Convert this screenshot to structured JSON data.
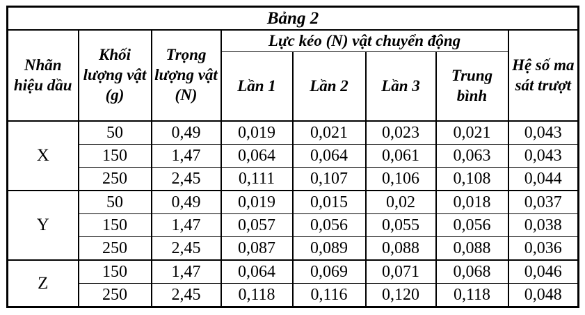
{
  "title": "Bảng 2",
  "columns": {
    "label": "Nhãn hiệu dầu",
    "mass": "Khối lượng vật (g)",
    "weight": "Trọng lượng vật (N)",
    "force_group": "Lực kéo (N) vật chuyển động",
    "trial1": "Lần 1",
    "trial2": "Lần 2",
    "trial3": "Lần 3",
    "average": "Trung bình",
    "friction": "Hệ số ma sát trượt"
  },
  "groups": [
    {
      "label": "X",
      "rows": [
        [
          "50",
          "0,49",
          "0,019",
          "0,021",
          "0,023",
          "0,021",
          "0,043"
        ],
        [
          "150",
          "1,47",
          "0,064",
          "0,064",
          "0,061",
          "0,063",
          "0,043"
        ],
        [
          "250",
          "2,45",
          "0,111",
          "0,107",
          "0,106",
          "0,108",
          "0,044"
        ]
      ]
    },
    {
      "label": "Y",
      "rows": [
        [
          "50",
          "0,49",
          "0,019",
          "0,015",
          "0,02",
          "0,018",
          "0,037"
        ],
        [
          "150",
          "1,47",
          "0,057",
          "0,056",
          "0,055",
          "0,056",
          "0,038"
        ],
        [
          "250",
          "2,45",
          "0,087",
          "0,089",
          "0,088",
          "0,088",
          "0,036"
        ]
      ]
    },
    {
      "label": "Z",
      "rows": [
        [
          "150",
          "1,47",
          "0,064",
          "0,069",
          "0,071",
          "0,068",
          "0,046"
        ],
        [
          "250",
          "2,45",
          "0,118",
          "0,116",
          "0,120",
          "0,118",
          "0,048"
        ]
      ]
    }
  ],
  "colors": {
    "border": "#000000",
    "text": "#000000",
    "background": "#ffffff"
  }
}
